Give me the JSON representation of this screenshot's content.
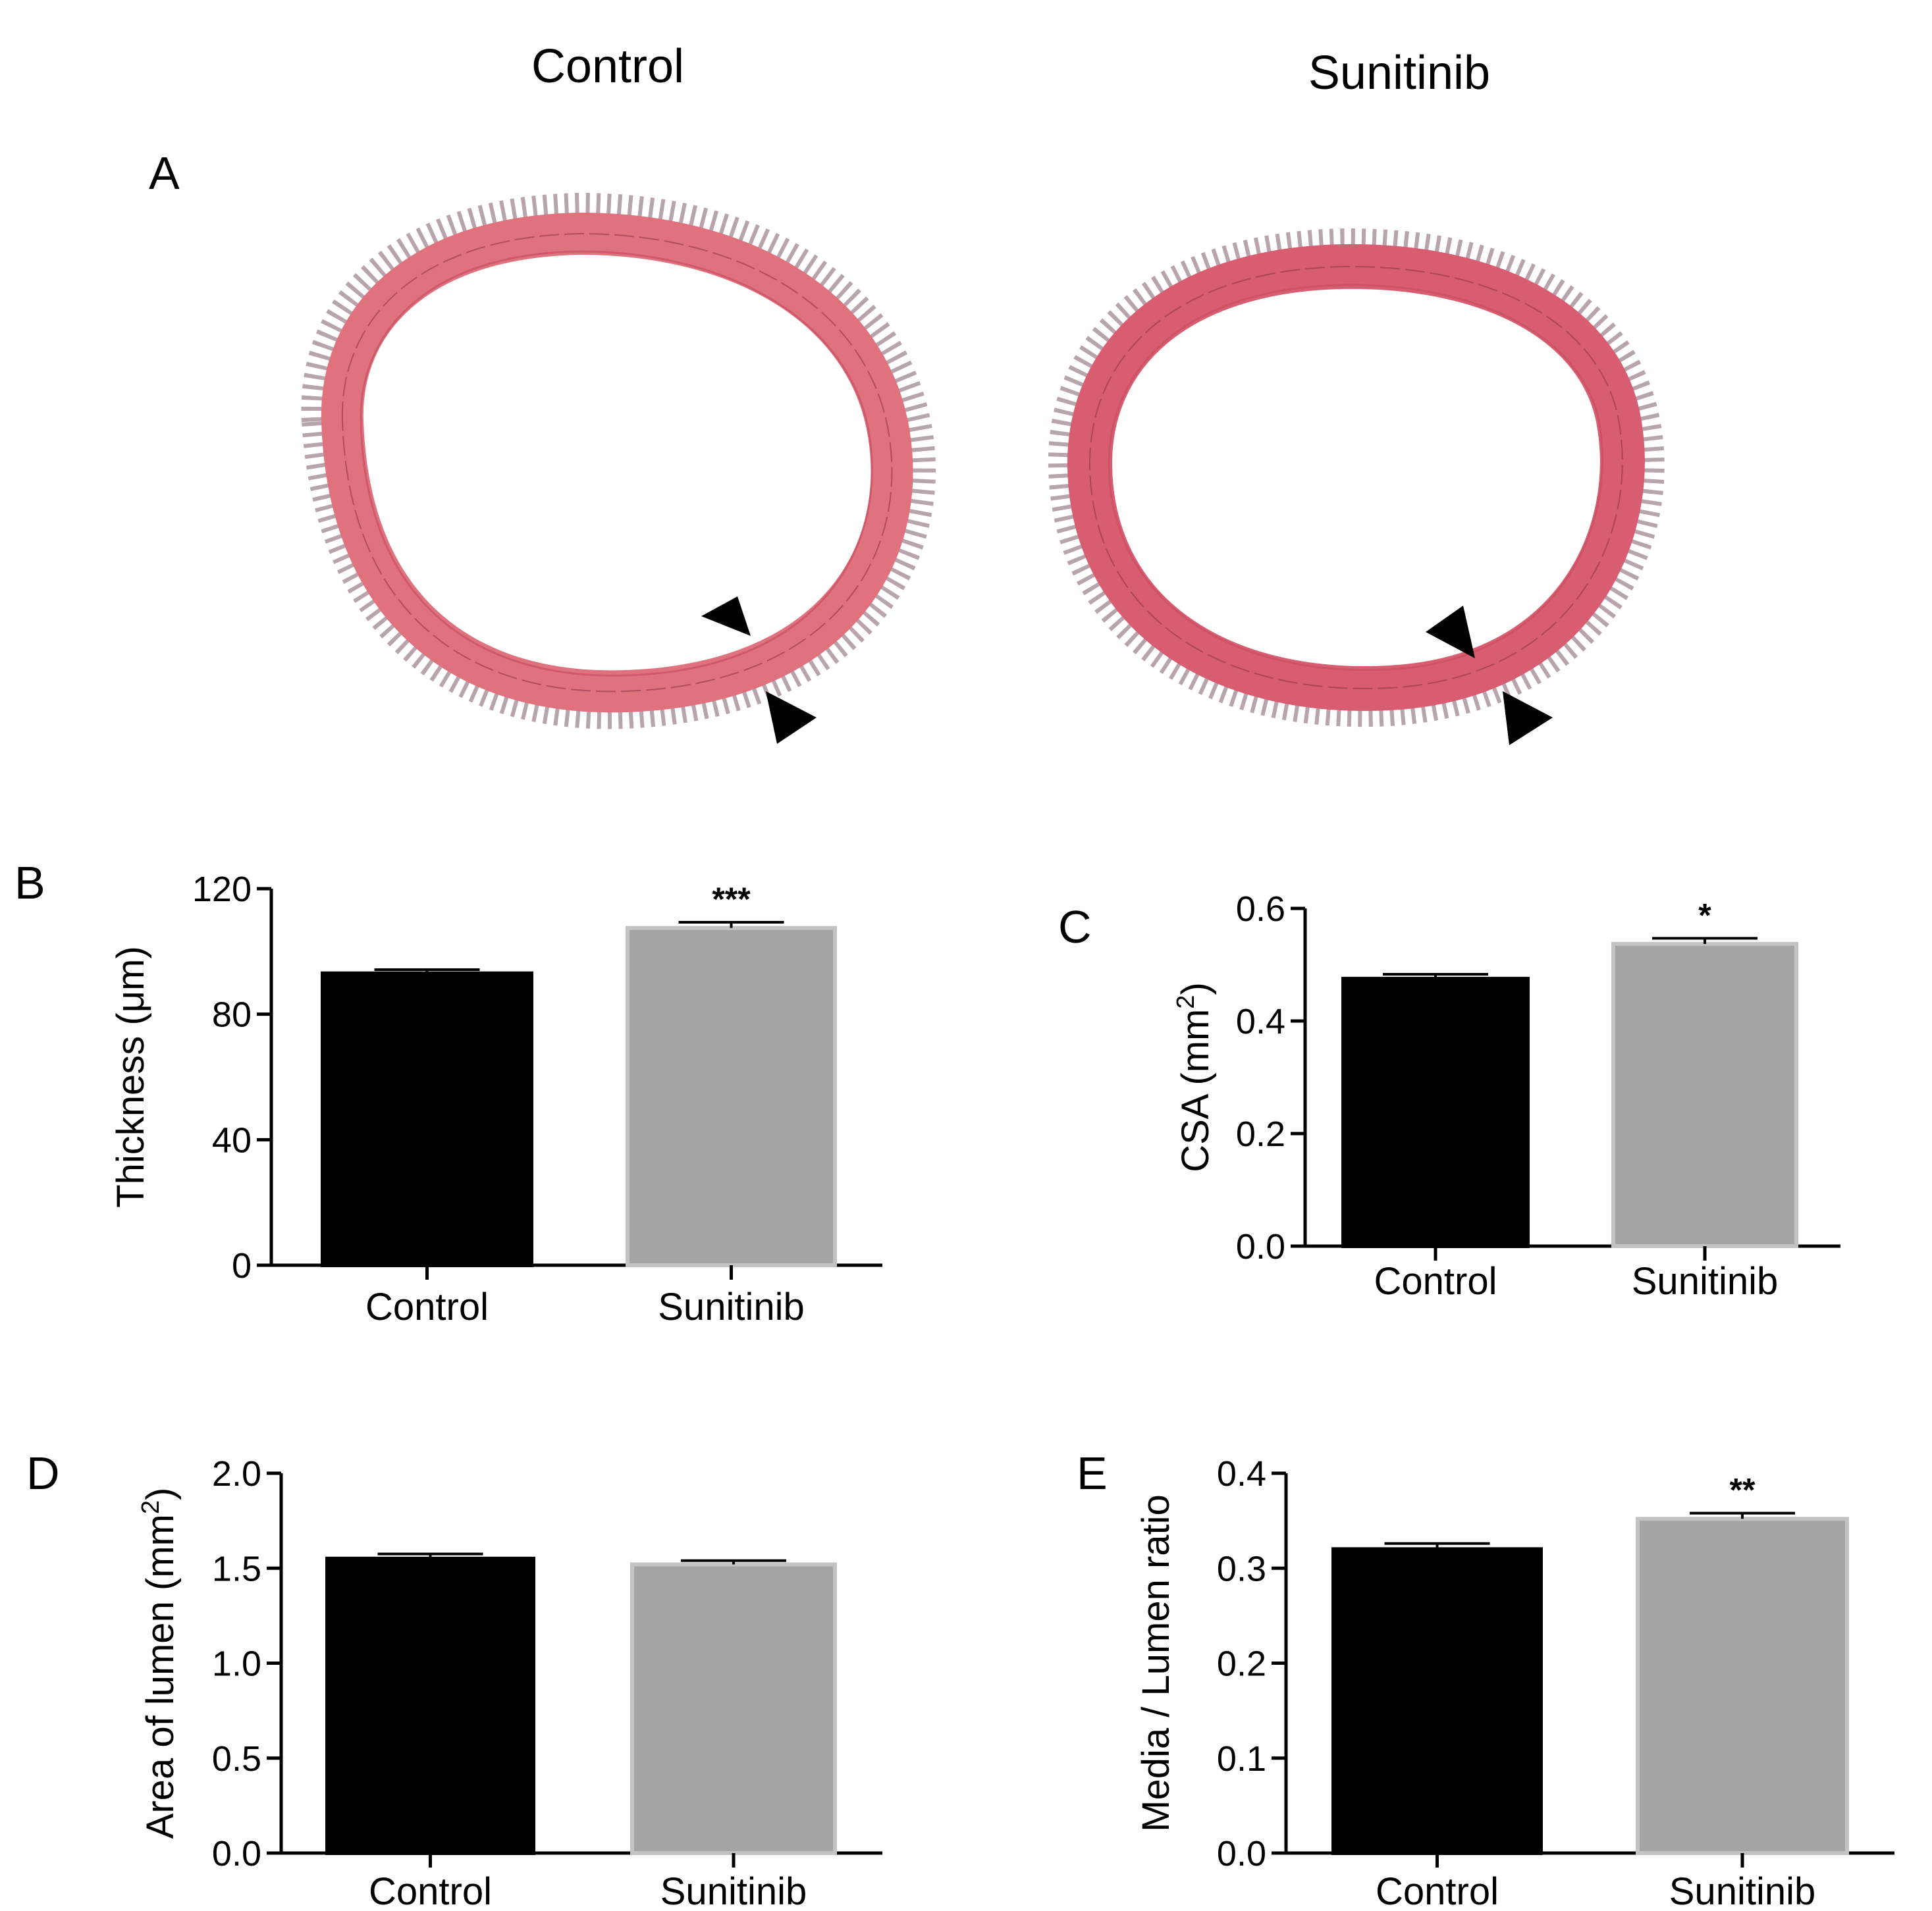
{
  "panel_a": {
    "letter": "A",
    "titles": [
      "Control",
      "Sunitinib"
    ]
  },
  "colors": {
    "control": "#000000",
    "sunitinib": "#a3a4a6",
    "sunitinib_edge": "#c3c3c3",
    "vessel_wall": "#e0727e",
    "vessel_wall_dark": "#c84f62",
    "vessel_layers": "#9c3d4d",
    "adventitia": "#7d5a6a"
  },
  "chart_data": [
    {
      "panel": "B",
      "type": "bar",
      "categories": [
        "Control",
        "Sunitinib"
      ],
      "values": [
        93,
        107.5
      ],
      "errors": [
        1.2,
        1.8
      ],
      "significance": [
        "",
        "***"
      ],
      "ylabel": "Thickness (μm)",
      "ylim": [
        0,
        120
      ],
      "yticks": [
        0,
        40,
        80,
        120
      ],
      "ytick_labels": [
        "0",
        "40",
        "80",
        "120"
      ],
      "grid": false,
      "legend": "none"
    },
    {
      "panel": "C",
      "type": "bar",
      "categories": [
        "Control",
        "Sunitinib"
      ],
      "values": [
        0.475,
        0.537
      ],
      "errors": [
        0.008,
        0.01
      ],
      "significance": [
        "",
        "*"
      ],
      "ylabel_main": "CSA (mm",
      "ylabel_sup": "2",
      "ylabel_end": ")",
      "ylim": [
        0,
        0.6
      ],
      "yticks": [
        0,
        0.2,
        0.4,
        0.6
      ],
      "ytick_labels": [
        "0.0",
        "0.2",
        "0.4",
        "0.6"
      ],
      "grid": false,
      "legend": "none"
    },
    {
      "panel": "D",
      "type": "bar",
      "categories": [
        "Control",
        "Sunitinib"
      ],
      "values": [
        1.55,
        1.52
      ],
      "errors": [
        0.025,
        0.02
      ],
      "significance": [
        "",
        ""
      ],
      "ylabel_main": "Area of lumen (mm",
      "ylabel_sup": "2",
      "ylabel_end": ")",
      "ylim": [
        0,
        2.0
      ],
      "yticks": [
        0,
        0.5,
        1.0,
        1.5,
        2.0
      ],
      "ytick_labels": [
        "0.0",
        "0.5",
        "1.0",
        "1.5",
        "2.0"
      ],
      "grid": false,
      "legend": "none"
    },
    {
      "panel": "E",
      "type": "bar",
      "categories": [
        "Control",
        "Sunitinib"
      ],
      "values": [
        0.32,
        0.352
      ],
      "errors": [
        0.006,
        0.006
      ],
      "significance": [
        "",
        "**"
      ],
      "ylabel": "Media / Lumen ratio",
      "ylim": [
        0,
        0.4
      ],
      "yticks": [
        0,
        0.1,
        0.2,
        0.3,
        0.4
      ],
      "ytick_labels": [
        "0.0",
        "0.1",
        "0.2",
        "0.3",
        "0.4"
      ],
      "grid": false,
      "legend": "none"
    }
  ]
}
